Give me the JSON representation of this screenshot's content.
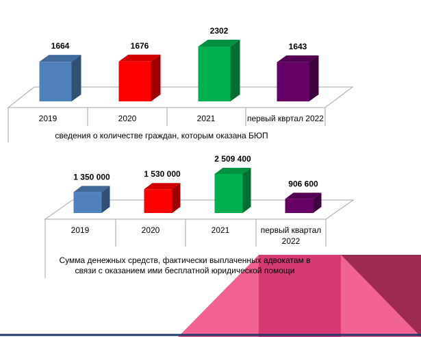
{
  "chart_data": [
    {
      "type": "bar",
      "categories": [
        "2019",
        "2020",
        "2021",
        "первый квртал 2022"
      ],
      "values": [
        1664,
        1676,
        2302,
        1643
      ],
      "value_labels": [
        "1664",
        "1676",
        "2302",
        "1643"
      ],
      "colors": [
        "#4f81bd",
        "#ff0000",
        "#00b050",
        "#660066"
      ],
      "title": "",
      "caption": "сведения о количестве граждан, которым оказана БЮП",
      "ylim": [
        0,
        2302
      ],
      "grid": false,
      "legend": "none"
    },
    {
      "type": "bar",
      "categories": [
        "2019",
        "2020",
        "2021",
        "первый квартал 2022"
      ],
      "values": [
        1350000,
        1530000,
        2509400,
        906600
      ],
      "value_labels": [
        "1 350 000",
        "1 530 000",
        "2 509 400",
        "906 600"
      ],
      "colors": [
        "#4f81bd",
        "#ff0000",
        "#00b050",
        "#660066"
      ],
      "title": "",
      "caption": "Сумма денежных средств, фактически выплаченных адвокатам в связи с оказанием ими бесплатной юридической помощи",
      "ylim": [
        0,
        2509400
      ],
      "grid": false,
      "legend": "none"
    }
  ],
  "decor": {
    "colors": [
      "#f06292",
      "#d63a73",
      "#9c2a52"
    ]
  }
}
